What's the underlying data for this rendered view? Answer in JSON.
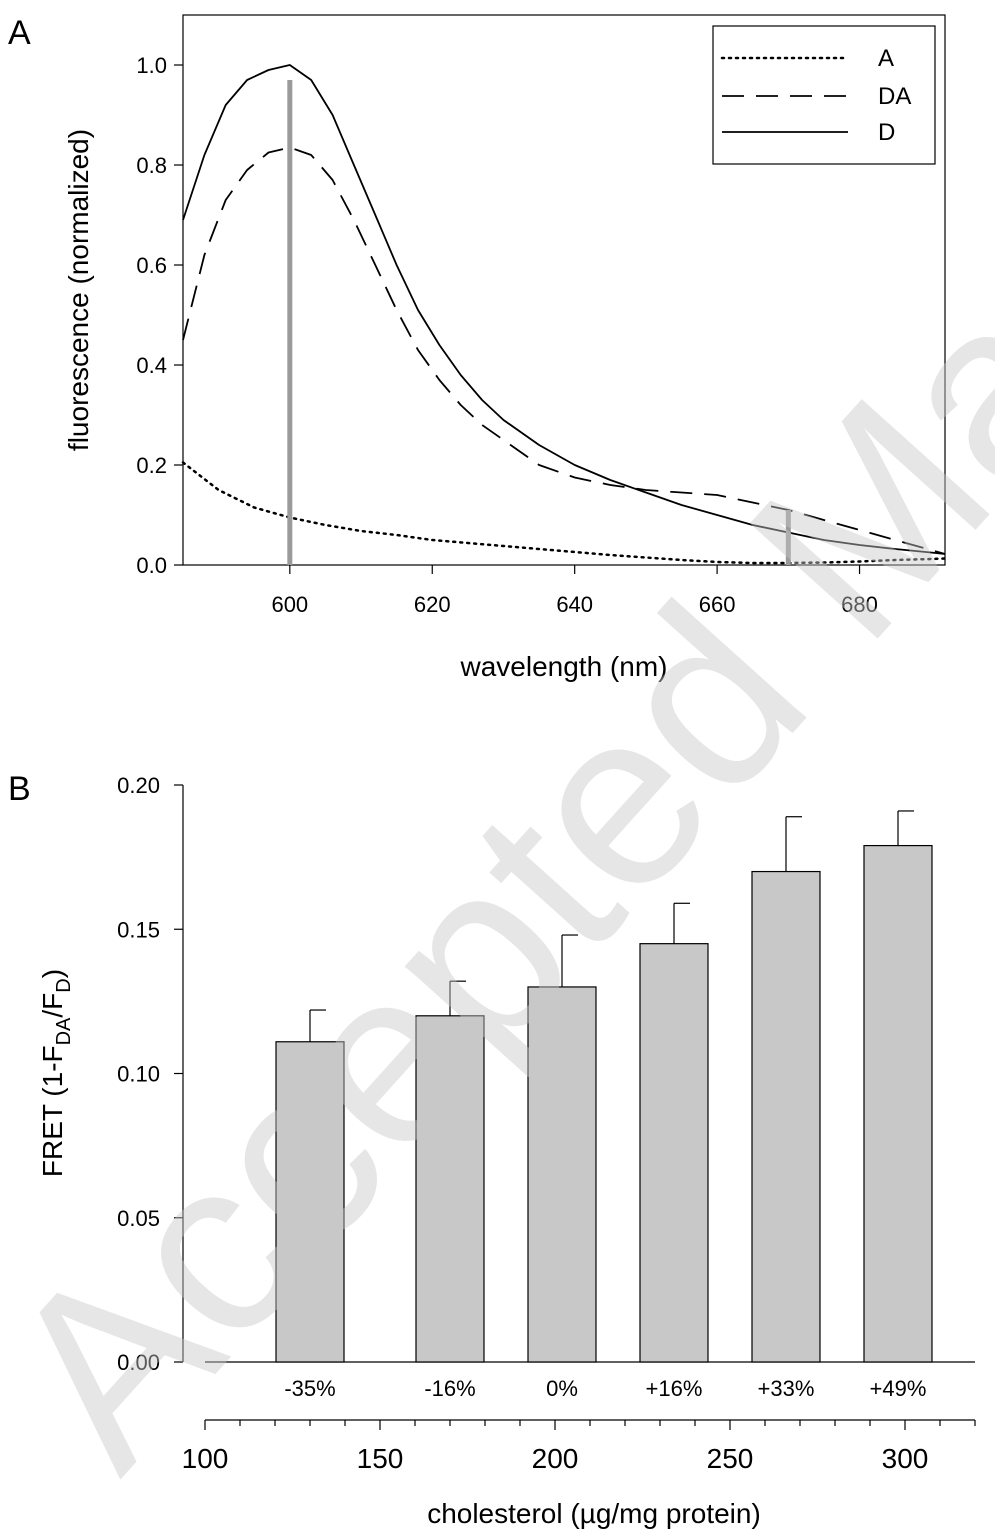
{
  "watermark": "Accepted Manuscript",
  "chart_data": [
    {
      "panel": "A",
      "type": "line",
      "xlabel": "wavelength (nm)",
      "ylabel": "fluorescence (normalized)",
      "xlim": [
        585,
        692
      ],
      "ylim": [
        0,
        1.1
      ],
      "xticks": [
        600,
        620,
        640,
        660,
        680
      ],
      "xtick_labels": [
        "600",
        "620",
        "640",
        "660",
        "680"
      ],
      "yticks": [
        0,
        0.2,
        0.4,
        0.6,
        0.8,
        1.0
      ],
      "ytick_labels": [
        "0.0",
        "0.2",
        "0.4",
        "0.6",
        "0.8",
        "1.0"
      ],
      "legend_position": "top-right",
      "series": [
        {
          "name": "A",
          "style": "dotted",
          "x": [
            585,
            590,
            595,
            600,
            605,
            610,
            615,
            620,
            625,
            630,
            635,
            640,
            645,
            650,
            655,
            660,
            665,
            670,
            675,
            680,
            685,
            690,
            692
          ],
          "y": [
            0.205,
            0.15,
            0.115,
            0.095,
            0.08,
            0.068,
            0.06,
            0.05,
            0.044,
            0.038,
            0.032,
            0.026,
            0.02,
            0.015,
            0.01,
            0.006,
            0.004,
            0.004,
            0.005,
            0.007,
            0.01,
            0.012,
            0.013
          ]
        },
        {
          "name": "DA",
          "style": "dashed",
          "x": [
            585,
            588,
            591,
            594,
            597,
            600,
            603,
            606,
            609,
            612,
            615,
            618,
            621,
            624,
            627,
            630,
            635,
            640,
            645,
            650,
            655,
            660,
            665,
            670,
            675,
            680,
            685,
            690,
            692
          ],
          "y": [
            0.45,
            0.62,
            0.73,
            0.79,
            0.825,
            0.835,
            0.82,
            0.77,
            0.69,
            0.6,
            0.51,
            0.43,
            0.37,
            0.32,
            0.28,
            0.25,
            0.2,
            0.175,
            0.16,
            0.15,
            0.145,
            0.14,
            0.125,
            0.11,
            0.09,
            0.07,
            0.05,
            0.03,
            0.022
          ]
        },
        {
          "name": "D",
          "style": "solid",
          "x": [
            585,
            588,
            591,
            594,
            597,
            600,
            603,
            606,
            609,
            612,
            615,
            618,
            621,
            624,
            627,
            630,
            635,
            640,
            645,
            650,
            655,
            660,
            665,
            670,
            675,
            680,
            685,
            690,
            692
          ],
          "y": [
            0.69,
            0.82,
            0.92,
            0.97,
            0.99,
            1.0,
            0.97,
            0.9,
            0.8,
            0.7,
            0.6,
            0.51,
            0.44,
            0.38,
            0.33,
            0.29,
            0.24,
            0.2,
            0.17,
            0.145,
            0.12,
            0.1,
            0.08,
            0.065,
            0.05,
            0.04,
            0.032,
            0.025,
            0.022
          ]
        }
      ],
      "markers": [
        {
          "x": 600,
          "y": 0.97,
          "color": "#9a9a9a"
        },
        {
          "x": 670,
          "y": 0.11,
          "color": "#9a9a9a"
        }
      ]
    },
    {
      "panel": "B",
      "type": "bar",
      "xlabel": "cholesterol (µg/mg protein)",
      "ylabel": "FRET (1-F",
      "ylabel_sub1": "DA",
      "ylabel_mid": "/F",
      "ylabel_sub2": "D",
      "ylabel_end": ")",
      "xlim": [
        100,
        320
      ],
      "ylim": [
        0,
        0.2
      ],
      "xticks": [
        100,
        150,
        200,
        250,
        300
      ],
      "xtick_labels": [
        "100",
        "150",
        "200",
        "250",
        "300"
      ],
      "yticks": [
        0,
        0.05,
        0.1,
        0.15,
        0.2
      ],
      "ytick_labels": [
        "0.00",
        "0.05",
        "0.10",
        "0.15",
        "0.20"
      ],
      "bar_color": "#c8c8c8",
      "categories": [
        "-35%",
        "-16%",
        "0%",
        "+16%",
        "+33%",
        "+49%"
      ],
      "bar_centers": [
        130,
        170,
        202,
        234,
        266,
        298
      ],
      "values": [
        0.111,
        0.12,
        0.13,
        0.145,
        0.17,
        0.179
      ],
      "errors": [
        0.011,
        0.012,
        0.018,
        0.014,
        0.019,
        0.012
      ]
    }
  ]
}
